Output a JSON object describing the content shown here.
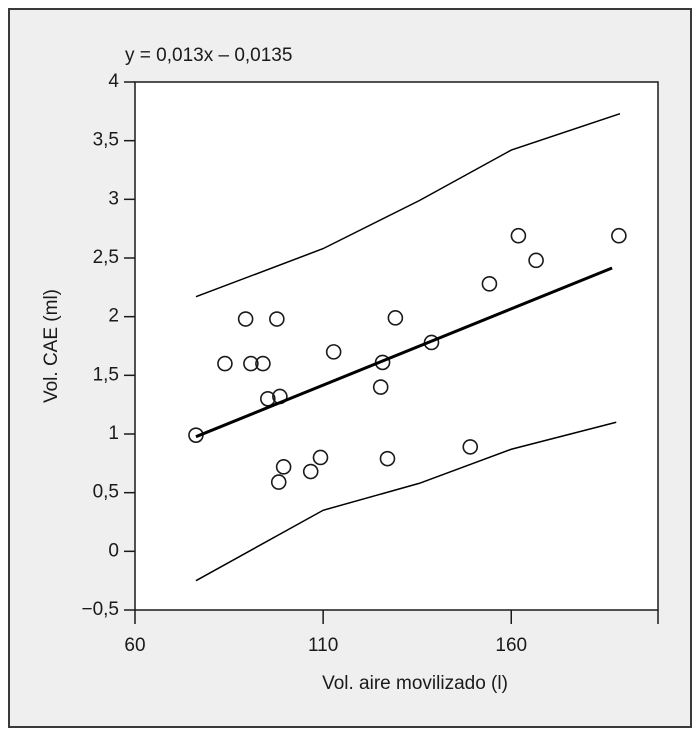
{
  "chart_data": {
    "type": "scatter",
    "annotation": "y = 0,013x – 0,0135",
    "x_label": "Vol. aire movilizado (l)",
    "y_label": "Vol. CAE (ml)",
    "xlim": [
      60,
      199
    ],
    "ylim": [
      -0.5,
      4
    ],
    "xticks": [
      60,
      110,
      160
    ],
    "yticks": [
      {
        "value": -0.5,
        "label": "−0,5"
      },
      0,
      {
        "value": 0.5,
        "label": "0,5"
      },
      1,
      {
        "value": 1.5,
        "label": "1,5"
      },
      2,
      {
        "value": 2.5,
        "label": "2,5"
      },
      3,
      {
        "value": 3.5,
        "label": "3,5"
      },
      4
    ],
    "series": [
      {
        "mode": "markers",
        "color": "#1a1a1a",
        "x": [
          76.2,
          83.9,
          89.4,
          90.8,
          94.0,
          95.3,
          97.7,
          98.5,
          98.2,
          99.5,
          106.7,
          109.3,
          112.8,
          125.3,
          125.8,
          127.1,
          129.2,
          138.8,
          149.1,
          154.2,
          161.9,
          166.6,
          188.6
        ],
        "values": [
          0.99,
          1.6,
          1.98,
          1.6,
          1.6,
          1.3,
          1.98,
          1.32,
          0.59,
          0.72,
          0.68,
          0.8,
          1.7,
          1.4,
          1.61,
          0.79,
          1.99,
          1.78,
          0.89,
          2.28,
          2.69,
          2.48,
          2.69
        ]
      },
      {
        "mode": "line",
        "color": "#000000",
        "line_width": 3,
        "x": [
          76.2,
          186.8
        ],
        "values": [
          0.977,
          2.415
        ]
      },
      {
        "mode": "line",
        "color": "#000000",
        "line_width": 1.5,
        "x": [
          76.2,
          110,
          135.6,
          160,
          188.9
        ],
        "values": [
          2.17,
          2.58,
          2.99,
          3.42,
          3.73
        ]
      },
      {
        "mode": "line",
        "color": "#000000",
        "line_width": 1.5,
        "x": [
          76.2,
          110,
          135.6,
          160,
          187.9
        ],
        "values": [
          -0.25,
          0.35,
          0.58,
          0.87,
          1.1
        ]
      }
    ]
  }
}
